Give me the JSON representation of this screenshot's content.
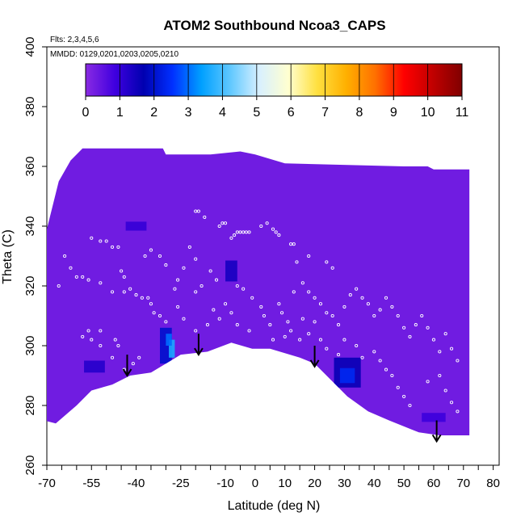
{
  "chart_data": {
    "type": "heatmap",
    "title": "ATOM2 Southbound Ncoa3_CAPS",
    "flights_label": "Flts: 2,3,4,5,6",
    "dates_label": "MMDD: 0129,0201,0203,0205,0210",
    "xlabel": "Latitude (deg N)",
    "ylabel": "Theta (C)",
    "xlim": [
      -70,
      82
    ],
    "ylim": [
      260,
      400
    ],
    "x_tick_labels": [
      "-70",
      "-55",
      "-40",
      "-25",
      "-10",
      "0",
      "10",
      "20",
      "30",
      "40",
      "50",
      "60",
      "70",
      "80"
    ],
    "y_tick_labels": [
      "260",
      "280",
      "300",
      "320",
      "340",
      "360",
      "380",
      "400"
    ],
    "colorbar": {
      "min": 0,
      "max": 11,
      "tick_labels": [
        "0",
        "1",
        "2",
        "3",
        "4",
        "5",
        "6",
        "7",
        "8",
        "9",
        "10",
        "11"
      ],
      "colors": [
        "#8a2be2",
        "#4000e0",
        "#0000b0",
        "#0030ff",
        "#00a0ff",
        "#60c8ff",
        "#d8f0ff",
        "#ffffd0",
        "#ffe040",
        "#ffb000",
        "#ff7000",
        "#ff0000",
        "#c00000",
        "#800000"
      ]
    },
    "background_value": 0.3,
    "envelope_top": [
      {
        "x": -71,
        "theta": 335
      },
      {
        "x": -66,
        "theta": 355
      },
      {
        "x": -62,
        "theta": 362
      },
      {
        "x": -58,
        "theta": 366
      },
      {
        "x": -55,
        "theta": 366
      },
      {
        "x": -45,
        "theta": 366
      },
      {
        "x": -31,
        "theta": 366
      },
      {
        "x": -30,
        "theta": 364
      },
      {
        "x": -15,
        "theta": 364
      },
      {
        "x": -5,
        "theta": 365
      },
      {
        "x": 0,
        "theta": 364
      },
      {
        "x": 10,
        "theta": 361
      },
      {
        "x": 50,
        "theta": 360
      },
      {
        "x": 58,
        "theta": 360
      },
      {
        "x": 60,
        "theta": 359
      },
      {
        "x": 67,
        "theta": 359
      }
    ],
    "envelope_bottom": [
      {
        "x": -71,
        "theta": 275
      },
      {
        "x": -67,
        "theta": 274
      },
      {
        "x": -60,
        "theta": 280
      },
      {
        "x": -55,
        "theta": 285
      },
      {
        "x": -48,
        "theta": 287
      },
      {
        "x": -42,
        "theta": 290
      },
      {
        "x": -35,
        "theta": 291
      },
      {
        "x": -25,
        "theta": 297
      },
      {
        "x": -16,
        "theta": 298
      },
      {
        "x": -8,
        "theta": 301
      },
      {
        "x": -1,
        "theta": 299
      },
      {
        "x": 5,
        "theta": 299
      },
      {
        "x": 15,
        "theta": 296
      },
      {
        "x": 20,
        "theta": 294
      },
      {
        "x": 26,
        "theta": 288
      },
      {
        "x": 31,
        "theta": 283
      },
      {
        "x": 38,
        "theta": 278
      },
      {
        "x": 45,
        "theta": 275
      },
      {
        "x": 55,
        "theta": 271
      },
      {
        "x": 62,
        "theta": 270
      },
      {
        "x": 72,
        "theta": 270
      }
    ],
    "right_edge_bottom_theta": 268,
    "anomalies": [
      {
        "lat": -40,
        "theta": 340,
        "w": 7,
        "h": 3,
        "value": 1.0
      },
      {
        "lat": -54,
        "theta": 293,
        "w": 7,
        "h": 4,
        "value": 1.2
      },
      {
        "lat": -30,
        "theta": 300,
        "w": 4,
        "h": 12,
        "value": 2.0
      },
      {
        "lat": -28,
        "theta": 299,
        "w": 2,
        "h": 6,
        "value": 3.6
      },
      {
        "lat": -29,
        "theta": 302,
        "w": 2,
        "h": 4,
        "value": 3.0
      },
      {
        "lat": -8,
        "theta": 325,
        "w": 4,
        "h": 7,
        "value": 1.4
      },
      {
        "lat": 31,
        "theta": 291,
        "w": 9,
        "h": 10,
        "value": 1.6
      },
      {
        "lat": 31,
        "theta": 290,
        "w": 5,
        "h": 5,
        "value": 2.4
      },
      {
        "lat": 60,
        "theta": 276,
        "w": 8,
        "h": 3,
        "value": 0.9
      }
    ],
    "arrows": [
      {
        "lat": -43,
        "theta_top": 297,
        "theta_tip": 290
      },
      {
        "lat": -19,
        "theta_top": 304,
        "theta_tip": 297
      },
      {
        "lat": 20,
        "theta_top": 300,
        "theta_tip": 293
      },
      {
        "lat": 61,
        "theta_top": 275,
        "theta_tip": 268
      }
    ],
    "sample_points": [
      [
        -8,
        336
      ],
      [
        -7,
        337
      ],
      [
        -6,
        338
      ],
      [
        -5,
        338
      ],
      [
        -4,
        338
      ],
      [
        -3,
        338
      ],
      [
        -2,
        338
      ],
      [
        -20,
        345
      ],
      [
        -19,
        345
      ],
      [
        -17,
        343
      ],
      [
        -11,
        341
      ],
      [
        -10,
        341
      ],
      [
        -12,
        340
      ],
      [
        2,
        340
      ],
      [
        4,
        341
      ],
      [
        6,
        339
      ],
      [
        7,
        338
      ],
      [
        8,
        337
      ],
      [
        12,
        334
      ],
      [
        13,
        334
      ],
      [
        -55,
        336
      ],
      [
        -52,
        335
      ],
      [
        -50,
        335
      ],
      [
        -48,
        333
      ],
      [
        -46,
        333
      ],
      [
        -60,
        323
      ],
      [
        -58,
        323
      ],
      [
        -56,
        322
      ],
      [
        -52,
        321
      ],
      [
        -45,
        325
      ],
      [
        -44,
        323
      ],
      [
        -42,
        319
      ],
      [
        -44,
        318
      ],
      [
        -48,
        318
      ],
      [
        -40,
        317
      ],
      [
        -38,
        316
      ],
      [
        -36,
        316
      ],
      [
        -35,
        314
      ],
      [
        -34,
        311
      ],
      [
        -32,
        310
      ],
      [
        -30,
        308
      ],
      [
        -56,
        305
      ],
      [
        -52,
        305
      ],
      [
        -55,
        302
      ],
      [
        -47,
        302
      ],
      [
        -46,
        300
      ],
      [
        -39,
        296
      ],
      [
        -41,
        294
      ],
      [
        -44,
        292
      ],
      [
        -48,
        296
      ],
      [
        -52,
        300
      ],
      [
        -58,
        303
      ],
      [
        -22,
        333
      ],
      [
        -20,
        329
      ],
      [
        -15,
        325
      ],
      [
        -13,
        322
      ],
      [
        -18,
        320
      ],
      [
        -20,
        318
      ],
      [
        -14,
        312
      ],
      [
        -12,
        309
      ],
      [
        -16,
        307
      ],
      [
        -20,
        305
      ],
      [
        -24,
        309
      ],
      [
        -26,
        313
      ],
      [
        -4,
        319
      ],
      [
        -1,
        316
      ],
      [
        2,
        313
      ],
      [
        3,
        310
      ],
      [
        5,
        307
      ],
      [
        8,
        314
      ],
      [
        9,
        311
      ],
      [
        11,
        308
      ],
      [
        12,
        305
      ],
      [
        13,
        318
      ],
      [
        16,
        321
      ],
      [
        18,
        318
      ],
      [
        20,
        316
      ],
      [
        22,
        314
      ],
      [
        24,
        311
      ],
      [
        26,
        310
      ],
      [
        28,
        307
      ],
      [
        30,
        313
      ],
      [
        32,
        317
      ],
      [
        34,
        319
      ],
      [
        36,
        316
      ],
      [
        38,
        314
      ],
      [
        40,
        310
      ],
      [
        42,
        312
      ],
      [
        44,
        316
      ],
      [
        46,
        313
      ],
      [
        48,
        310
      ],
      [
        50,
        306
      ],
      [
        52,
        303
      ],
      [
        54,
        307
      ],
      [
        56,
        310
      ],
      [
        58,
        306
      ],
      [
        60,
        302
      ],
      [
        62,
        298
      ],
      [
        64,
        304
      ],
      [
        66,
        299
      ],
      [
        68,
        295
      ],
      [
        62,
        290
      ],
      [
        58,
        288
      ],
      [
        64,
        285
      ],
      [
        66,
        281
      ],
      [
        68,
        278
      ],
      [
        46,
        290
      ],
      [
        48,
        286
      ],
      [
        50,
        283
      ],
      [
        52,
        280
      ],
      [
        44,
        292
      ],
      [
        42,
        295
      ],
      [
        40,
        298
      ],
      [
        36,
        296
      ],
      [
        34,
        300
      ],
      [
        30,
        302
      ],
      [
        28,
        297
      ],
      [
        24,
        299
      ],
      [
        22,
        302
      ],
      [
        18,
        304
      ],
      [
        15,
        302
      ],
      [
        10,
        303
      ],
      [
        6,
        302
      ],
      [
        -2,
        305
      ],
      [
        -6,
        307
      ],
      [
        -8,
        311
      ],
      [
        -10,
        314
      ],
      [
        -6,
        320
      ],
      [
        16,
        309
      ],
      [
        20,
        308
      ],
      [
        14,
        328
      ],
      [
        18,
        330
      ],
      [
        24,
        328
      ],
      [
        26,
        326
      ],
      [
        -27,
        319
      ],
      [
        -26,
        322
      ],
      [
        -24,
        326
      ],
      [
        -30,
        327
      ],
      [
        -32,
        330
      ],
      [
        -35,
        332
      ],
      [
        -37,
        330
      ],
      [
        -64,
        330
      ],
      [
        -62,
        326
      ],
      [
        -66,
        320
      ]
    ]
  }
}
